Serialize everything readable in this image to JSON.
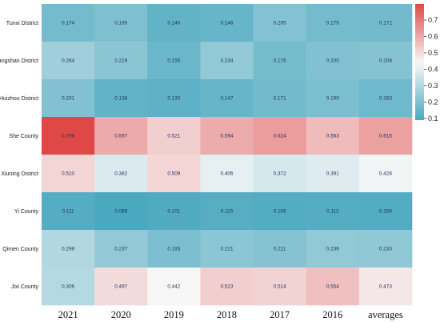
{
  "chart_data": {
    "type": "heatmap",
    "title": "",
    "xlabel": "",
    "ylabel": "",
    "columns": [
      "2021",
      "2020",
      "2019",
      "2018",
      "2017",
      "2016",
      "averages"
    ],
    "rows": [
      "Tunxi District",
      "Huangshan District",
      "Huizhou District",
      "She County",
      "Xiuning District",
      "Yi County",
      "Qimen County",
      "Jixi County"
    ],
    "values": [
      [
        0.174,
        0.195,
        0.14,
        0.146,
        0.205,
        0.175,
        0.172
      ],
      [
        0.264,
        0.219,
        0.155,
        0.234,
        0.176,
        0.2,
        0.208
      ],
      [
        0.201,
        0.138,
        0.13,
        0.147,
        0.171,
        0.19,
        0.163
      ],
      [
        0.798,
        0.597,
        0.521,
        0.594,
        0.624,
        0.563,
        0.616
      ],
      [
        0.51,
        0.382,
        0.509,
        0.406,
        0.372,
        0.391,
        0.428
      ],
      [
        0.111,
        0.089,
        0.101,
        0.115,
        0.106,
        0.112,
        0.106
      ],
      [
        0.298,
        0.237,
        0.193,
        0.221,
        0.211,
        0.236,
        0.233
      ],
      [
        0.306,
        0.497,
        0.442,
        0.523,
        0.514,
        0.554,
        0.473
      ]
    ],
    "value_labels": [
      [
        "0.174",
        "0.195",
        "0.140",
        "0.146",
        "0.205",
        "0.175",
        "0.172"
      ],
      [
        "0.264",
        "0.219",
        "0.155",
        "0.234",
        "0.176",
        "0.200",
        "0.208"
      ],
      [
        "0.201",
        "0.138",
        "0.130",
        "0.147",
        "0.171",
        "0.190",
        "0.163"
      ],
      [
        "0.798",
        "0.597",
        "0.521",
        "0.594",
        "0.624",
        "0.563",
        "0.616"
      ],
      [
        "0.510",
        "0.382",
        "0.509",
        "0.406",
        "0.372",
        "0.391",
        "0.428"
      ],
      [
        "0.111",
        "0.089",
        "0.101",
        "0.115",
        "0.106",
        "0.112",
        "0.106"
      ],
      [
        "0.298",
        "0.237",
        "0.193",
        "0.221",
        "0.211",
        "0.236",
        "0.233"
      ],
      [
        "0.306",
        "0.497",
        "0.442",
        "0.523",
        "0.514",
        "0.554",
        "0.473"
      ]
    ],
    "colorbar": {
      "range": [
        0.089,
        0.798
      ],
      "ticks": [
        0.1,
        0.2,
        0.3,
        0.4,
        0.5,
        0.6,
        0.7
      ],
      "tick_labels": [
        "0.1",
        "0.2",
        "0.3",
        "0.4",
        "0.5",
        "0.6",
        "0.7"
      ],
      "low_color": "#4aa8bf",
      "mid_color": "#f7f7f7",
      "high_color": "#e04848",
      "mid_value": 0.44,
      "position": "right"
    },
    "grid": false
  }
}
